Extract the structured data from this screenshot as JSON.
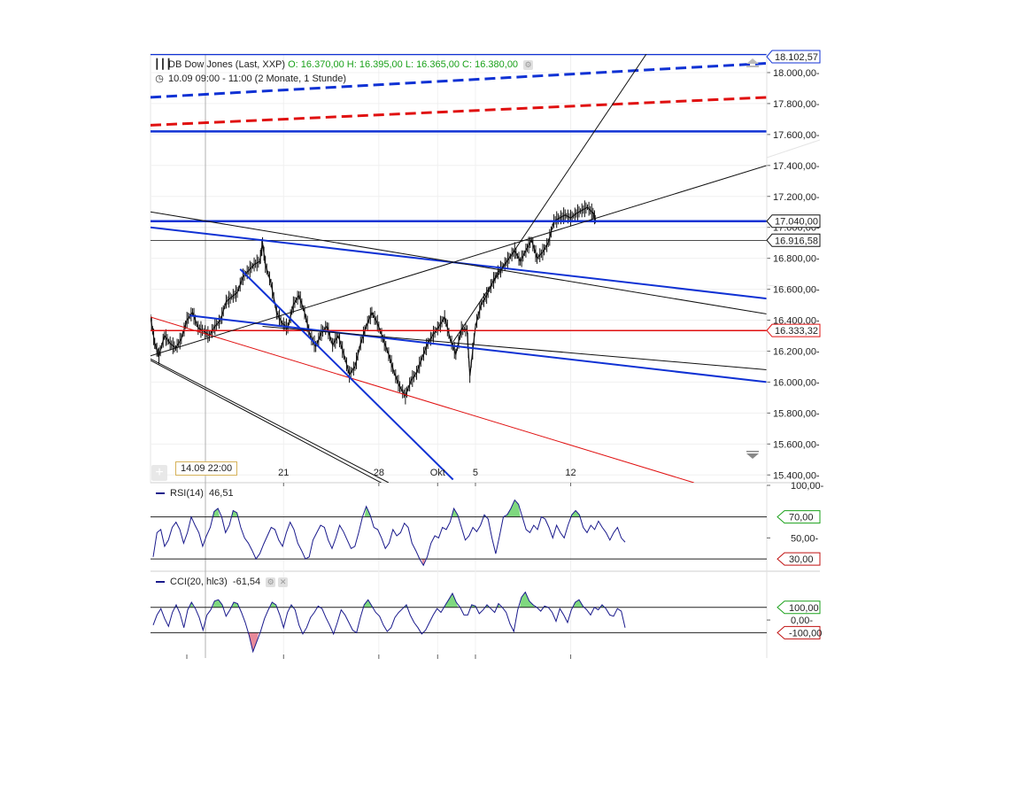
{
  "header": {
    "instrument": "DB Dow Jones (Last, XXP)",
    "ohlc": "O: 16.370,00  H: 16.395,00  L: 16.365,00  C: 16.380,00",
    "period": "10.09 09:00 - 11:00 (2 Monate, 1 Stunde)"
  },
  "cursor_date": "14.09 22:00",
  "colors": {
    "blue": "#1032d4",
    "red": "#e01010",
    "black": "#111111",
    "ind": "#1a1a8c",
    "green_fill": "#7fd87f",
    "red_fill": "#e88a9a"
  },
  "chart_data": [
    {
      "type": "line",
      "name_panel": "price",
      "ylim": [
        15350,
        18120
      ],
      "y_ticks": [
        15400,
        15600,
        15800,
        16000,
        16200,
        16400,
        16600,
        16800,
        17000,
        17200,
        17400,
        17600,
        17800,
        18000
      ],
      "y_tick_labels": [
        "15.400,00",
        "15.600,00",
        "15.800,00",
        "16.000,00",
        "16.200,00",
        "16.400,00",
        "16.600,00",
        "16.800,00",
        "17.000,00",
        "17.200,00",
        "17.400,00",
        "17.600,00",
        "17.800,00",
        "18.000,00"
      ],
      "x_range": [
        0,
        44
      ],
      "x_ticks": [
        {
          "x": 9.5,
          "label": "21"
        },
        {
          "x": 16.3,
          "label": "28"
        },
        {
          "x": 20.5,
          "label": "Okt"
        },
        {
          "x": 23.2,
          "label": "5"
        },
        {
          "x": 30.0,
          "label": "12"
        }
      ],
      "value_labels": [
        {
          "value": 18102.57,
          "label": "18.102,57",
          "color": "#1032d4"
        },
        {
          "value": 17040,
          "label": "17.040,00",
          "color": "#111111"
        },
        {
          "value": 16916.58,
          "label": "16.916,58",
          "color": "#111111"
        },
        {
          "value": 16333.32,
          "label": "16.333,32",
          "color": "#e01010"
        }
      ],
      "price_path": [
        [
          0.0,
          16420
        ],
        [
          0.3,
          16250
        ],
        [
          0.6,
          16170
        ],
        [
          1.0,
          16300
        ],
        [
          1.4,
          16250
        ],
        [
          1.8,
          16220
        ],
        [
          2.2,
          16280
        ],
        [
          2.6,
          16400
        ],
        [
          3.0,
          16450
        ],
        [
          3.4,
          16350
        ],
        [
          3.8,
          16330
        ],
        [
          4.2,
          16300
        ],
        [
          4.6,
          16360
        ],
        [
          5.0,
          16400
        ],
        [
          5.4,
          16520
        ],
        [
          5.8,
          16550
        ],
        [
          6.2,
          16580
        ],
        [
          6.6,
          16680
        ],
        [
          7.0,
          16720
        ],
        [
          7.4,
          16760
        ],
        [
          7.8,
          16780
        ],
        [
          8.0,
          16900
        ],
        [
          8.2,
          16760
        ],
        [
          8.6,
          16640
        ],
        [
          9.0,
          16450
        ],
        [
          9.4,
          16380
        ],
        [
          9.8,
          16350
        ],
        [
          10.2,
          16500
        ],
        [
          10.6,
          16560
        ],
        [
          11.0,
          16450
        ],
        [
          11.4,
          16300
        ],
        [
          11.8,
          16230
        ],
        [
          12.2,
          16320
        ],
        [
          12.6,
          16360
        ],
        [
          13.0,
          16240
        ],
        [
          13.4,
          16300
        ],
        [
          13.8,
          16180
        ],
        [
          14.2,
          16050
        ],
        [
          14.6,
          16100
        ],
        [
          15.0,
          16250
        ],
        [
          15.4,
          16360
        ],
        [
          15.8,
          16450
        ],
        [
          16.2,
          16380
        ],
        [
          16.6,
          16280
        ],
        [
          17.0,
          16180
        ],
        [
          17.4,
          16060
        ],
        [
          17.8,
          15970
        ],
        [
          18.2,
          15910
        ],
        [
          18.6,
          16010
        ],
        [
          19.0,
          16060
        ],
        [
          19.4,
          16160
        ],
        [
          19.8,
          16250
        ],
        [
          20.2,
          16310
        ],
        [
          20.6,
          16360
        ],
        [
          21.0,
          16420
        ],
        [
          21.4,
          16280
        ],
        [
          21.8,
          16180
        ],
        [
          22.2,
          16340
        ],
        [
          22.6,
          16340
        ],
        [
          22.8,
          16040
        ],
        [
          23.2,
          16360
        ],
        [
          23.6,
          16500
        ],
        [
          24.0,
          16560
        ],
        [
          24.4,
          16640
        ],
        [
          24.8,
          16710
        ],
        [
          25.2,
          16750
        ],
        [
          25.6,
          16800
        ],
        [
          26.0,
          16850
        ],
        [
          26.4,
          16780
        ],
        [
          26.8,
          16850
        ],
        [
          27.2,
          16920
        ],
        [
          27.6,
          16800
        ],
        [
          28.0,
          16840
        ],
        [
          28.4,
          16900
        ],
        [
          28.8,
          17040
        ],
        [
          29.2,
          17060
        ],
        [
          29.6,
          17080
        ],
        [
          30.0,
          17060
        ],
        [
          30.4,
          17090
        ],
        [
          30.8,
          17110
        ],
        [
          31.2,
          17130
        ],
        [
          31.6,
          17090
        ],
        [
          31.8,
          17040
        ]
      ],
      "trend_lines": [
        {
          "color": "blue",
          "width": 2.5,
          "dash": false,
          "points": [
            [
              0,
              17040
            ],
            [
              44,
              17040
            ]
          ]
        },
        {
          "color": "blue",
          "width": 2.5,
          "dash": false,
          "points": [
            [
              0,
              17620
            ],
            [
              44,
              17620
            ]
          ]
        },
        {
          "color": "blue",
          "width": 2.5,
          "dash": false,
          "points": [
            [
              0,
              18120
            ],
            [
              44,
              18120
            ]
          ]
        },
        {
          "color": "blue",
          "width": 3,
          "dash": true,
          "points": [
            [
              0,
              17840
            ],
            [
              44,
              18060
            ]
          ]
        },
        {
          "color": "red",
          "width": 3,
          "dash": true,
          "points": [
            [
              0,
              17660
            ],
            [
              44,
              17840
            ]
          ]
        },
        {
          "color": "red",
          "width": 1.5,
          "dash": false,
          "points": [
            [
              0,
              16333
            ],
            [
              44,
              16333
            ]
          ]
        },
        {
          "color": "red",
          "width": 1,
          "dash": false,
          "points": [
            [
              0,
              16420
            ],
            [
              38.8,
              15350
            ]
          ]
        },
        {
          "color": "black",
          "width": 0.8,
          "dash": false,
          "points": [
            [
              0,
              16916
            ],
            [
              44,
              16916
            ]
          ]
        },
        {
          "color": "blue",
          "width": 2,
          "dash": false,
          "points": [
            [
              0,
              17000
            ],
            [
              44,
              16540
            ]
          ]
        },
        {
          "color": "blue",
          "width": 2,
          "dash": false,
          "points": [
            [
              2.8,
              16430
            ],
            [
              44,
              16000
            ]
          ]
        },
        {
          "color": "blue",
          "width": 2,
          "dash": false,
          "points": [
            [
              6.4,
              16730
            ],
            [
              21.6,
              15370
            ]
          ]
        },
        {
          "color": "black",
          "width": 1,
          "dash": false,
          "points": [
            [
              0,
              17100
            ],
            [
              44,
              16440
            ]
          ]
        },
        {
          "color": "black",
          "width": 1,
          "dash": false,
          "points": [
            [
              8.0,
              16360
            ],
            [
              44,
              16080
            ]
          ]
        },
        {
          "color": "black",
          "width": 1,
          "dash": false,
          "points": [
            [
              0,
              16170
            ],
            [
              44,
              17400
            ]
          ]
        },
        {
          "color": "black",
          "width": 1,
          "dash": false,
          "points": [
            [
              0,
              16150
            ],
            [
              17.0,
              15350
            ]
          ]
        },
        {
          "color": "black",
          "width": 1,
          "dash": false,
          "points": [
            [
              0,
              16140
            ],
            [
              17.5,
              15300
            ]
          ]
        },
        {
          "color": "black",
          "width": 1,
          "dash": false,
          "points": [
            [
              21.6,
              16260
            ],
            [
              35.4,
              18120
            ]
          ]
        }
      ]
    },
    {
      "type": "line",
      "name_panel": "rsi",
      "label": "RSI(14)",
      "value": "46,51",
      "ylim": [
        20,
        100
      ],
      "levels": [
        {
          "value": 70,
          "label": "70,00",
          "color": "#1aa11a"
        },
        {
          "value": 30,
          "label": "30,00",
          "color": "#c01010"
        }
      ],
      "tick_labels": [
        {
          "value": 100,
          "label": "100,00"
        },
        {
          "value": 50,
          "label": "50,00"
        }
      ],
      "values": [
        32,
        55,
        58,
        42,
        48,
        60,
        65,
        58,
        45,
        55,
        70,
        62,
        55,
        42,
        52,
        60,
        75,
        78,
        70,
        55,
        62,
        76,
        74,
        60,
        50,
        45,
        38,
        30,
        35,
        44,
        52,
        60,
        58,
        48,
        42,
        55,
        65,
        58,
        45,
        38,
        30,
        32,
        48,
        55,
        62,
        60,
        48,
        40,
        50,
        62,
        56,
        48,
        40,
        42,
        55,
        70,
        80,
        72,
        60,
        58,
        50,
        40,
        45,
        58,
        52,
        55,
        64,
        60,
        45,
        38,
        30,
        24,
        32,
        45,
        52,
        50,
        60,
        58,
        65,
        78,
        72,
        60,
        48,
        52,
        60,
        56,
        62,
        72,
        68,
        50,
        35,
        52,
        70,
        72,
        78,
        86,
        82,
        70,
        58,
        55,
        62,
        58,
        70,
        68,
        60,
        50,
        62,
        55,
        50,
        62,
        72,
        76,
        72,
        60,
        55,
        62,
        58,
        66,
        60,
        55,
        48,
        55,
        60,
        50,
        46
      ]
    },
    {
      "type": "line",
      "name_panel": "cci",
      "label": "CCI(20, hlc3)",
      "value": "-61,54",
      "ylim": [
        -300,
        350
      ],
      "levels": [
        {
          "value": 100,
          "label": "100,00",
          "color": "#1aa11a"
        },
        {
          "value": -100,
          "label": "-100,00",
          "color": "#c01010"
        }
      ],
      "tick_labels": [
        {
          "value": 0,
          "label": "0,00"
        }
      ],
      "values": [
        -40,
        40,
        90,
        10,
        -50,
        60,
        120,
        50,
        -60,
        80,
        140,
        90,
        20,
        -80,
        40,
        80,
        150,
        160,
        120,
        30,
        80,
        140,
        130,
        60,
        -20,
        -120,
        -250,
        -170,
        -90,
        10,
        80,
        140,
        120,
        40,
        -60,
        60,
        120,
        80,
        -40,
        -110,
        -60,
        20,
        60,
        110,
        90,
        20,
        -40,
        -110,
        -20,
        80,
        40,
        -20,
        -80,
        -100,
        20,
        120,
        160,
        110,
        60,
        30,
        -40,
        -90,
        -60,
        20,
        60,
        90,
        120,
        40,
        -20,
        -60,
        -110,
        -80,
        -20,
        40,
        90,
        60,
        110,
        160,
        210,
        140,
        100,
        40,
        40,
        120,
        110,
        50,
        80,
        120,
        90,
        60,
        130,
        100,
        60,
        -30,
        -90,
        80,
        180,
        220,
        150,
        120,
        100,
        70,
        110,
        100,
        60,
        -10,
        90,
        40,
        -20,
        80,
        140,
        160,
        110,
        80,
        40,
        100,
        80,
        120,
        90,
        40,
        30,
        90,
        70,
        -60
      ]
    }
  ]
}
